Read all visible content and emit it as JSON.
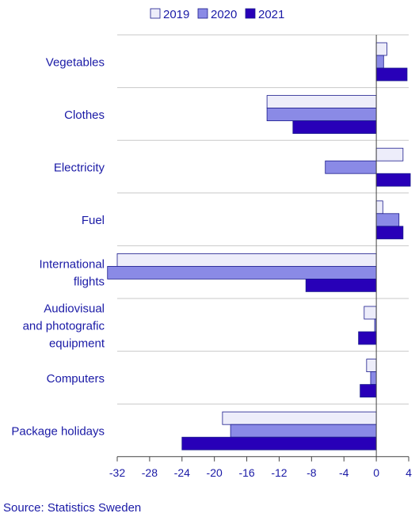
{
  "chart_data": {
    "type": "bar",
    "orientation": "horizontal",
    "categories": [
      "Vegetables",
      "Clothes",
      "Electricity",
      "Fuel",
      "International flights",
      "Audiovisual and photografic equipment",
      "Computers",
      "Package holidays"
    ],
    "category_lines": [
      [
        "Vegetables"
      ],
      [
        "Clothes"
      ],
      [
        "Electricity"
      ],
      [
        "Fuel"
      ],
      [
        "International",
        "flights"
      ],
      [
        "Audiovisual",
        "and photografic",
        "equipment"
      ],
      [
        "Computers"
      ],
      [
        "Package holidays"
      ]
    ],
    "series": [
      {
        "name": "2019",
        "values": [
          1.3,
          -13.5,
          3.3,
          0.8,
          -32.0,
          -1.5,
          -1.2,
          -19.0
        ],
        "color": "#ededfa"
      },
      {
        "name": "2020",
        "values": [
          0.9,
          -13.5,
          -6.3,
          2.8,
          -33.2,
          -0.2,
          -0.7,
          -18.0
        ],
        "color": "#8a8ae6"
      },
      {
        "name": "2021",
        "values": [
          3.8,
          -10.3,
          4.2,
          3.3,
          -8.7,
          -2.2,
          -2.0,
          -24.0
        ],
        "color": "#2800b8"
      }
    ],
    "xlim": [
      -32,
      4
    ],
    "xticks": [
      -32,
      -28,
      -24,
      -20,
      -16,
      -12,
      -8,
      -4,
      0,
      4
    ],
    "legend_position": "top",
    "grid": "horizontal separators between categories",
    "title": "",
    "xlabel": "",
    "ylabel": ""
  },
  "source": "Source: Statistics Sweden"
}
